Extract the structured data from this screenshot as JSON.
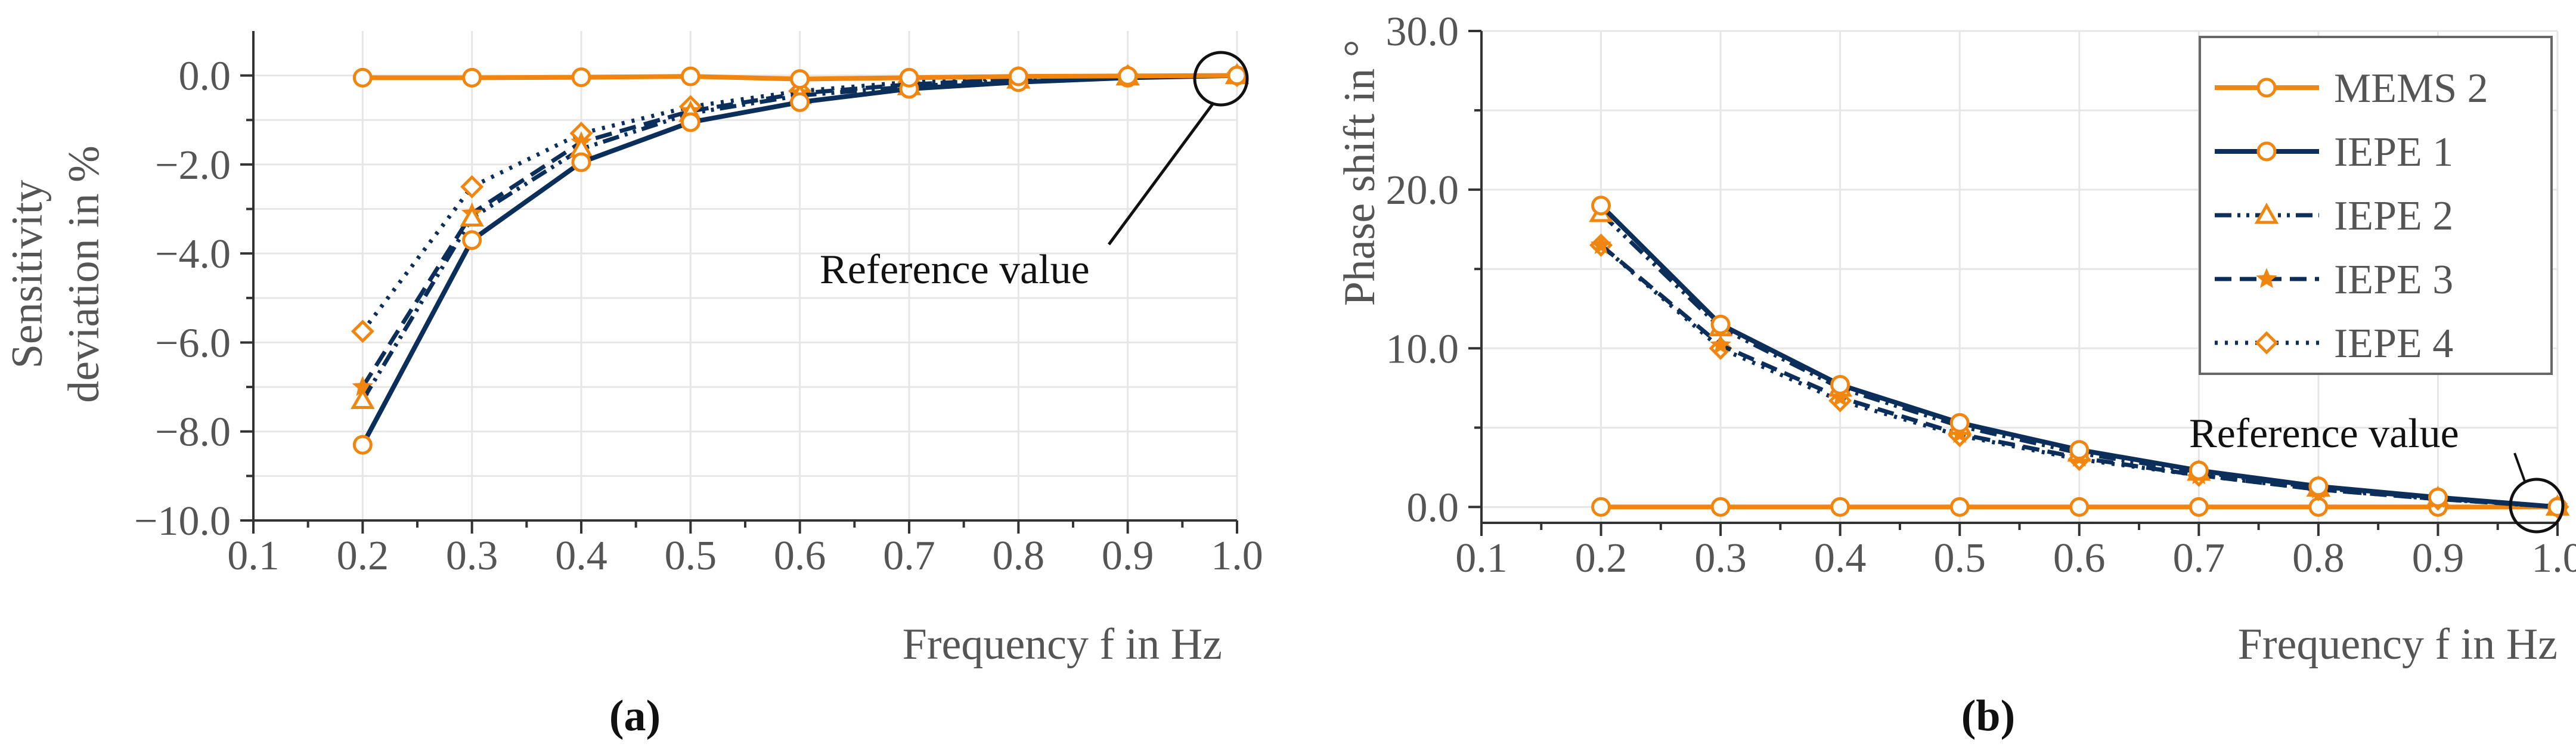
{
  "figure_labels": {
    "a": "(a)",
    "b": "(b)"
  },
  "chart_data": [
    {
      "type": "line",
      "panel": "a",
      "xlabel": "Frequency f in Hz",
      "ylabel_lines": [
        "Sensitivity",
        "deviation in %"
      ],
      "xlim": [
        0.1,
        1.0
      ],
      "ylim": [
        -10.0,
        1.0
      ],
      "xticks": [
        0.1,
        0.2,
        0.3,
        0.4,
        0.5,
        0.6,
        0.7,
        0.8,
        0.9,
        1.0
      ],
      "xtick_labels": [
        "0.1",
        "0.2",
        "0.3",
        "0.4",
        "0.5",
        "0.6",
        "0.7",
        "0.8",
        "0.9",
        "1.0"
      ],
      "yticks": [
        0.0,
        -2.0,
        -4.0,
        -6.0,
        -8.0,
        -10.0
      ],
      "ytick_labels": [
        "0.0",
        "−2.0",
        "−4.0",
        "−6.0",
        "−8.0",
        "−10.0"
      ],
      "x": [
        0.2,
        0.3,
        0.4,
        0.5,
        0.6,
        0.7,
        0.8,
        0.9,
        1.0
      ],
      "series": [
        {
          "name": "MEMS 2",
          "values": [
            -0.05,
            -0.05,
            -0.04,
            -0.02,
            -0.08,
            -0.05,
            -0.02,
            -0.01,
            0.0
          ]
        },
        {
          "name": "IEPE 1",
          "values": [
            -8.3,
            -3.7,
            -1.95,
            -1.05,
            -0.6,
            -0.3,
            -0.15,
            -0.05,
            0.0
          ]
        },
        {
          "name": "IEPE 2",
          "values": [
            -7.3,
            -3.2,
            -1.65,
            -0.85,
            -0.45,
            -0.25,
            -0.1,
            -0.03,
            0.0
          ]
        },
        {
          "name": "IEPE 3",
          "values": [
            -7.0,
            -3.1,
            -1.5,
            -0.8,
            -0.4,
            -0.2,
            -0.08,
            -0.02,
            0.0
          ]
        },
        {
          "name": "IEPE 4",
          "values": [
            -5.75,
            -2.5,
            -1.3,
            -0.7,
            -0.35,
            -0.15,
            -0.05,
            -0.01,
            0.0
          ]
        }
      ],
      "annotation": "Reference value"
    },
    {
      "type": "line",
      "panel": "b",
      "xlabel": "Frequency f in Hz",
      "ylabel": "Phase shift in °",
      "xlim": [
        0.1,
        1.0
      ],
      "ylim": [
        -1.0,
        30.0
      ],
      "xticks": [
        0.1,
        0.2,
        0.3,
        0.4,
        0.5,
        0.6,
        0.7,
        0.8,
        0.9,
        1.0
      ],
      "xtick_labels": [
        "0.1",
        "0.2",
        "0.3",
        "0.4",
        "0.5",
        "0.6",
        "0.7",
        "0.8",
        "0.9",
        "1.0"
      ],
      "yticks": [
        0.0,
        10.0,
        20.0,
        30.0
      ],
      "ytick_labels": [
        "0.0",
        "10.0",
        "20.0",
        "30.0"
      ],
      "x": [
        0.2,
        0.3,
        0.4,
        0.5,
        0.6,
        0.7,
        0.8,
        0.9,
        1.0
      ],
      "series": [
        {
          "name": "MEMS 2",
          "values": [
            0.0,
            0.0,
            0.0,
            0.0,
            0.0,
            0.0,
            0.0,
            0.0,
            0.0
          ]
        },
        {
          "name": "IEPE 1",
          "values": [
            19.0,
            11.5,
            7.7,
            5.3,
            3.6,
            2.3,
            1.3,
            0.6,
            0.0
          ]
        },
        {
          "name": "IEPE 2",
          "values": [
            18.5,
            11.3,
            7.5,
            5.1,
            3.4,
            2.2,
            1.2,
            0.55,
            0.0
          ]
        },
        {
          "name": "IEPE 3",
          "values": [
            16.5,
            10.2,
            6.9,
            4.6,
            3.1,
            2.0,
            1.1,
            0.5,
            0.0
          ]
        },
        {
          "name": "IEPE 4",
          "values": [
            16.5,
            10.0,
            6.7,
            4.5,
            3.0,
            2.0,
            1.1,
            0.5,
            0.0
          ]
        }
      ],
      "legend_position": "top-right",
      "annotation": "Reference value"
    }
  ],
  "series_styles": {
    "MEMS 2": {
      "color": "#F0860F",
      "dash": "",
      "marker": "circle",
      "width": 8
    },
    "IEPE 1": {
      "color": "#0B2E5A",
      "dash": "",
      "marker": "circle",
      "width": 8
    },
    "IEPE 2": {
      "color": "#0B2E5A",
      "dash": "28 10 5 10 5 10",
      "marker": "triangle",
      "width": 7
    },
    "IEPE 3": {
      "color": "#0B2E5A",
      "dash": "28 14",
      "marker": "star",
      "width": 7
    },
    "IEPE 4": {
      "color": "#0B2E5A",
      "dash": "5 12",
      "marker": "diamond",
      "width": 7
    }
  },
  "marker_color": "#F0860F"
}
